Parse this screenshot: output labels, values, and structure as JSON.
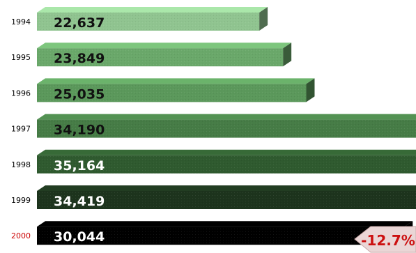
{
  "chart_data": {
    "type": "bar",
    "orientation": "horizontal",
    "categories": [
      "1994",
      "1995",
      "1996",
      "1997",
      "1998",
      "1999",
      "2000"
    ],
    "values": [
      22637,
      23849,
      25035,
      34190,
      35164,
      34419,
      30044
    ],
    "value_labels": [
      "22,637",
      "23,849",
      "25,035",
      "34,190",
      "35,164",
      "34,419",
      "30,044"
    ],
    "bar_colors": [
      "#90c490",
      "#6aa86a",
      "#5b985b",
      "#467c46",
      "#2f5a2f",
      "#1d341d",
      "#000000"
    ],
    "value_label_colors": [
      "#111111",
      "#111111",
      "#111111",
      "#111111",
      "#ffffff",
      "#ffffff",
      "#ffffff"
    ],
    "category_label_colors": [
      "#000000",
      "#000000",
      "#000000",
      "#000000",
      "#000000",
      "#000000",
      "#cc0000"
    ],
    "title": "",
    "xlabel": "",
    "ylabel": "",
    "grid": false,
    "legend": "none",
    "annotation": {
      "text": "-12.7%",
      "color": "#cc1111",
      "background": "#ead6d6"
    }
  }
}
